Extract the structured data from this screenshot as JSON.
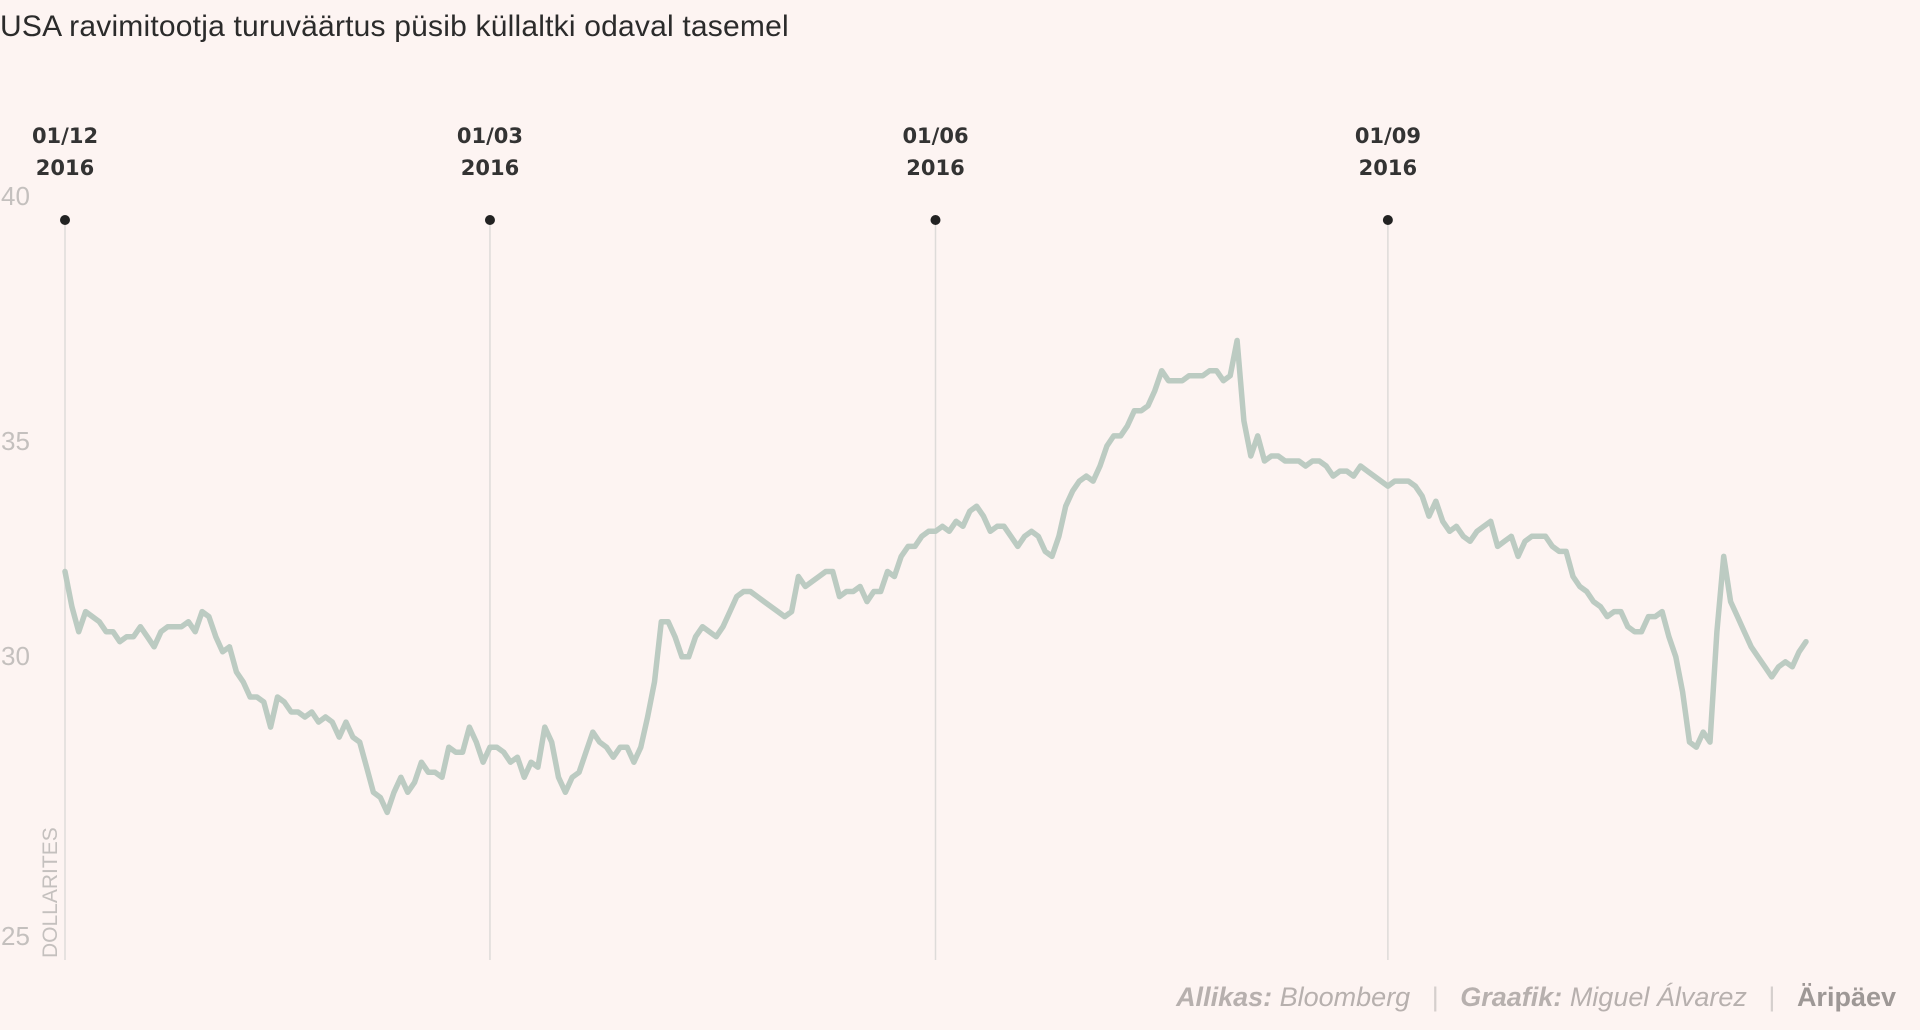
{
  "title": "USA ravimitootja turuväärtus püsib küllaltki odaval tasemel",
  "footer": {
    "source_label": "Allikas:",
    "source_value": "Bloomberg",
    "graphic_label": "Graafik:",
    "graphic_value": "Miguel Álvarez",
    "brand": "Äripäev",
    "separator": "|"
  },
  "chart_data": {
    "type": "line",
    "title": "USA ravimitootja turuväärtus püsib küllaltki odaval tasemel",
    "ylabel": "DOLLARITES",
    "ylim": [
      25,
      40
    ],
    "yticks": [
      "40",
      "35",
      "30",
      "25"
    ],
    "grid": false,
    "color": "#bccbc2",
    "date_markers": [
      {
        "line1": "01/12",
        "line2": "2016",
        "x": 0
      },
      {
        "line1": "01/03",
        "line2": "2016",
        "x": 62
      },
      {
        "line1": "01/06",
        "line2": "2016",
        "x": 127
      },
      {
        "line1": "01/09",
        "line2": "2016",
        "x": 193
      }
    ],
    "series": [
      {
        "values": [
          32.7,
          32,
          31.5,
          31.9,
          31.8,
          31.7,
          31.5,
          31.5,
          31.3,
          31.4,
          31.4,
          31.6,
          31.4,
          31.2,
          31.5,
          31.6,
          31.6,
          31.6,
          31.7,
          31.5,
          31.9,
          31.8,
          31.4,
          31.1,
          31.2,
          30.7,
          30.5,
          30.2,
          30.2,
          30.1,
          29.6,
          30.2,
          30.1,
          29.9,
          29.9,
          29.8,
          29.9,
          29.7,
          29.8,
          29.7,
          29.4,
          29.7,
          29.4,
          29.3,
          28.8,
          28.3,
          28.2,
          27.9,
          28.3,
          28.6,
          28.3,
          28.5,
          28.9,
          28.7,
          28.7,
          28.6,
          29.2,
          29.1,
          29.1,
          29.6,
          29.3,
          28.9,
          29.2,
          29.2,
          29.1,
          28.9,
          29,
          28.6,
          28.9,
          28.8,
          29.6,
          29.3,
          28.6,
          28.3,
          28.6,
          28.7,
          29.1,
          29.5,
          29.3,
          29.2,
          29,
          29.2,
          29.2,
          28.9,
          29.2,
          29.8,
          30.5,
          31.7,
          31.7,
          31.4,
          31,
          31,
          31.4,
          31.6,
          31.5,
          31.4,
          31.6,
          31.9,
          32.2,
          32.3,
          32.3,
          32.2,
          32.1,
          32,
          31.9,
          31.8,
          31.9,
          32.6,
          32.4,
          32.5,
          32.6,
          32.7,
          32.7,
          32.2,
          32.3,
          32.3,
          32.4,
          32.1,
          32.3,
          32.3,
          32.7,
          32.6,
          33,
          33.2,
          33.2,
          33.4,
          33.5,
          33.5,
          33.6,
          33.5,
          33.7,
          33.6,
          33.9,
          34,
          33.8,
          33.5,
          33.6,
          33.6,
          33.4,
          33.2,
          33.4,
          33.5,
          33.4,
          33.1,
          33,
          33.4,
          34,
          34.3,
          34.5,
          34.6,
          34.5,
          34.8,
          35.2,
          35.4,
          35.4,
          35.6,
          35.9,
          35.9,
          36,
          36.3,
          36.7,
          36.5,
          36.5,
          36.5,
          36.6,
          36.6,
          36.6,
          36.7,
          36.7,
          36.5,
          36.6,
          37.3,
          35.7,
          35,
          35.4,
          34.9,
          35,
          35,
          34.9,
          34.9,
          34.9,
          34.8,
          34.9,
          34.9,
          34.8,
          34.6,
          34.7,
          34.7,
          34.6,
          34.8,
          34.7,
          34.6,
          34.5,
          34.4,
          34.5,
          34.5,
          34.5,
          34.4,
          34.2,
          33.8,
          34.1,
          33.7,
          33.5,
          33.6,
          33.4,
          33.3,
          33.5,
          33.6,
          33.7,
          33.2,
          33.3,
          33.4,
          33,
          33.3,
          33.4,
          33.4,
          33.4,
          33.2,
          33.1,
          33.1,
          32.6,
          32.4,
          32.3,
          32.1,
          32,
          31.8,
          31.9,
          31.9,
          31.6,
          31.5,
          31.5,
          31.8,
          31.8,
          31.9,
          31.4,
          31,
          30.3,
          29.3,
          29.2,
          29.5,
          29.3,
          31.5,
          33,
          32.1,
          31.8,
          31.5,
          31.2,
          31,
          30.8,
          30.6,
          30.8,
          30.9,
          30.8,
          31.1,
          31.3
        ]
      }
    ]
  }
}
